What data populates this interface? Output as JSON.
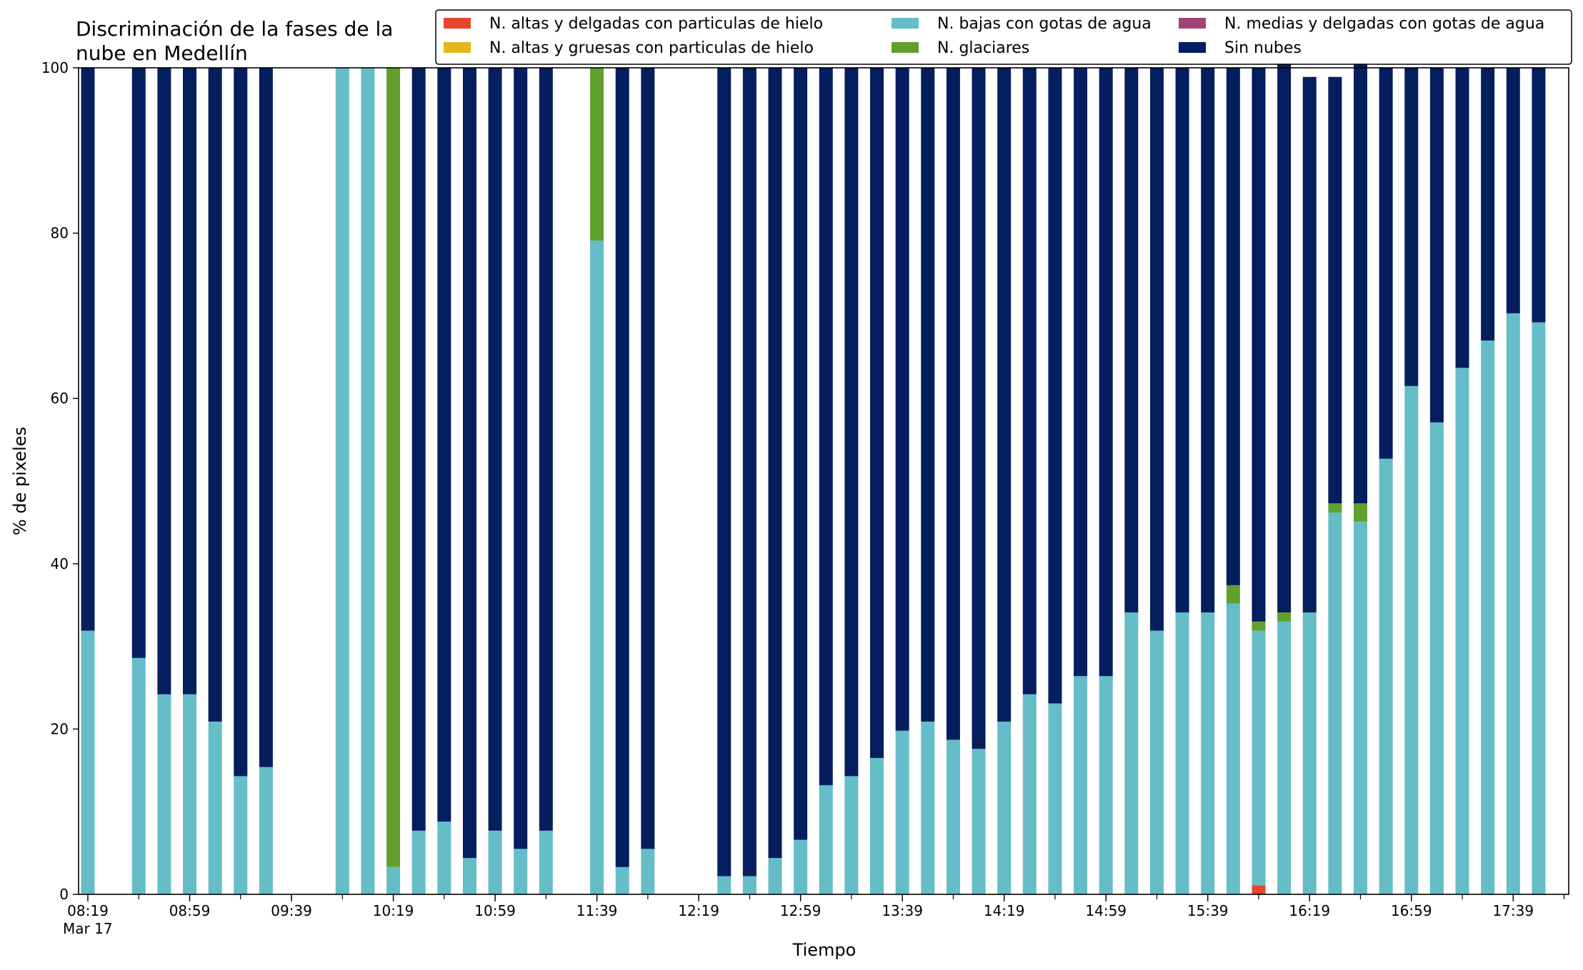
{
  "chart_data": {
    "type": "bar",
    "stacked": true,
    "title_lines": [
      "Discriminación de la fases de la",
      "nube en Medellín"
    ],
    "xlabel": "Tiempo",
    "ylabel": "% de pixeles",
    "ylim": [
      0,
      100
    ],
    "yticks": [
      0,
      20,
      40,
      60,
      80,
      100
    ],
    "grid": false,
    "legend_position": "top-right",
    "x_time_step_minutes": 10,
    "x_tick_labels": [
      [
        "08:19",
        "Mar 17"
      ],
      [
        "08:59"
      ],
      [
        "09:39"
      ],
      [
        "10:19"
      ],
      [
        "10:59"
      ],
      [
        "11:39"
      ],
      [
        "12:19"
      ],
      [
        "12:59"
      ],
      [
        "13:39"
      ],
      [
        "14:19"
      ],
      [
        "14:59"
      ],
      [
        "15:39"
      ],
      [
        "16:19"
      ],
      [
        "16:59"
      ],
      [
        "17:39"
      ]
    ],
    "categories": [
      "08:19",
      "08:29",
      "08:39",
      "08:49",
      "08:59",
      "09:09",
      "09:19",
      "09:29",
      "09:39",
      "09:49",
      "09:59",
      "10:09",
      "10:19",
      "10:29",
      "10:39",
      "10:49",
      "10:59",
      "11:09",
      "11:19",
      "11:29",
      "11:39",
      "11:49",
      "11:59",
      "12:09",
      "12:19",
      "12:29",
      "12:39",
      "12:49",
      "12:59",
      "13:09",
      "13:19",
      "13:29",
      "13:39",
      "13:49",
      "13:59",
      "14:09",
      "14:19",
      "14:29",
      "14:39",
      "14:49",
      "14:59",
      "15:09",
      "15:19",
      "15:29",
      "15:39",
      "15:49",
      "15:59",
      "16:09",
      "16:19",
      "16:29",
      "16:39",
      "16:49",
      "16:59",
      "17:09",
      "17:19",
      "17:29",
      "17:39",
      "17:49"
    ],
    "series": [
      {
        "name": "N. altas y delgadas con particulas de hielo",
        "color": "#e8452c",
        "values": [
          0,
          null,
          0,
          0,
          0,
          0,
          0,
          0,
          null,
          null,
          0,
          0,
          0,
          0,
          0,
          0,
          0,
          0,
          0,
          null,
          0,
          0,
          0,
          null,
          null,
          0,
          0,
          0,
          0,
          0,
          0,
          0,
          0,
          0,
          0,
          0,
          0,
          0,
          0,
          0,
          0,
          0,
          0,
          0,
          0,
          0,
          1.1,
          0,
          0,
          0,
          0,
          0,
          0,
          0,
          0,
          0,
          0,
          0
        ]
      },
      {
        "name": "N. altas y gruesas con particulas de hielo",
        "color": "#e4b61e",
        "values": [
          0,
          null,
          0,
          0,
          0,
          0,
          0,
          0,
          null,
          null,
          0,
          0,
          0,
          0,
          0,
          0,
          0,
          0,
          0,
          null,
          0,
          0,
          0,
          null,
          null,
          0,
          0,
          0,
          0,
          0,
          0,
          0,
          0,
          0,
          0,
          0,
          0,
          0,
          0,
          0,
          0,
          0,
          0,
          0,
          0,
          0,
          0,
          0,
          0,
          0,
          0,
          0,
          0,
          0,
          0,
          0,
          0,
          0
        ]
      },
      {
        "name": "N. bajas con gotas de agua",
        "color": "#65bdc8",
        "values": [
          31.9,
          null,
          28.6,
          24.2,
          24.2,
          20.9,
          14.3,
          15.4,
          null,
          null,
          100,
          100,
          3.3,
          7.7,
          8.8,
          4.4,
          7.7,
          5.5,
          7.7,
          null,
          79.1,
          3.3,
          5.5,
          null,
          null,
          2.2,
          2.2,
          4.4,
          6.6,
          13.2,
          14.3,
          16.5,
          19.8,
          20.9,
          18.7,
          17.6,
          20.9,
          24.2,
          23.1,
          26.4,
          26.4,
          34.1,
          31.9,
          34.1,
          34.1,
          35.2,
          30.8,
          33.0,
          34.1,
          46.2,
          45.1,
          52.7,
          61.5,
          57.1,
          63.7,
          67.0,
          70.3,
          69.2
        ]
      },
      {
        "name": "N. glaciares",
        "color": "#62a02d",
        "values": [
          0,
          null,
          0,
          0,
          0,
          0,
          0,
          0,
          null,
          null,
          0,
          0,
          96.7,
          0,
          0,
          0,
          0,
          0,
          0,
          null,
          20.9,
          0,
          0,
          null,
          null,
          0,
          0,
          0,
          0,
          0,
          0,
          0,
          0,
          0,
          0,
          0,
          0,
          0,
          0,
          0,
          0,
          0,
          0,
          0,
          0,
          2.2,
          1.1,
          1.1,
          0,
          1.1,
          2.2,
          0,
          0,
          0,
          0,
          0,
          0,
          0
        ]
      },
      {
        "name": "N. medias y delgadas con gotas de agua",
        "color": "#a0417a",
        "values": [
          0,
          null,
          0,
          0,
          0,
          0,
          0,
          0,
          null,
          null,
          0,
          0,
          0,
          0,
          0,
          0,
          0,
          0,
          0,
          null,
          0,
          0,
          0,
          null,
          null,
          0,
          0,
          0,
          0,
          0,
          0,
          0,
          0,
          0,
          0,
          0,
          0,
          0,
          0,
          0,
          0,
          0,
          0,
          0,
          0,
          0,
          0,
          0,
          0,
          0,
          0,
          0,
          0,
          0,
          0,
          0,
          0,
          0
        ]
      },
      {
        "name": "Sin nubes",
        "color": "#041e5e",
        "values": [
          68.1,
          null,
          71.4,
          75.8,
          75.8,
          79.1,
          85.7,
          84.6,
          null,
          null,
          0,
          0,
          0,
          92.3,
          91.2,
          95.6,
          92.3,
          94.5,
          92.3,
          null,
          0,
          96.7,
          94.5,
          null,
          null,
          97.8,
          97.8,
          95.6,
          93.4,
          86.8,
          85.7,
          83.5,
          80.2,
          79.1,
          81.3,
          82.4,
          79.1,
          75.8,
          76.9,
          73.6,
          73.6,
          65.9,
          68.1,
          65.9,
          65.9,
          62.6,
          67.0,
          67.0,
          64.8,
          51.6,
          54.9,
          47.3,
          38.5,
          42.9,
          36.3,
          33.0,
          29.7,
          30.8
        ]
      }
    ]
  }
}
